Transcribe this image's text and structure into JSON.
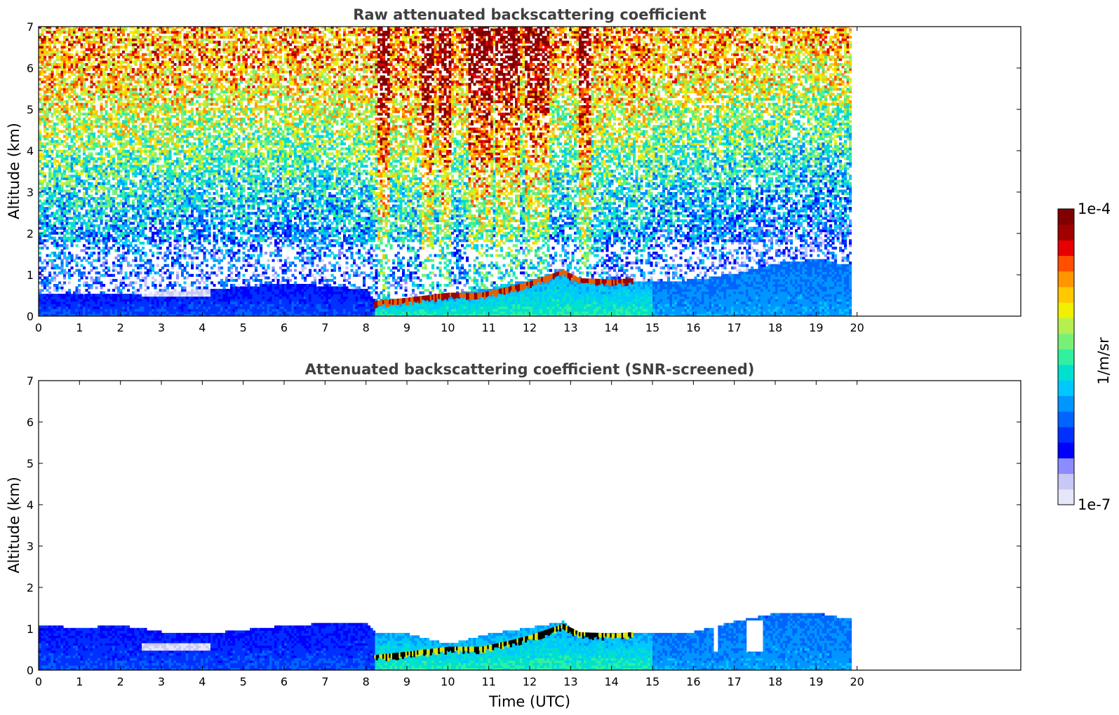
{
  "chart_data": [
    {
      "type": "heatmap",
      "title": "Raw attenuated backscattering coefficient",
      "xlabel": "",
      "ylabel": "Altitude (km)",
      "xlim": [
        0,
        24
      ],
      "ylim": [
        0,
        7
      ],
      "xticks": [
        0,
        1,
        2,
        3,
        4,
        5,
        6,
        7,
        8,
        9,
        10,
        11,
        12,
        13,
        14,
        15,
        16,
        17,
        18,
        19,
        20
      ],
      "yticks": [
        0,
        1,
        2,
        3,
        4,
        5,
        6,
        7
      ],
      "data_extent_hours": [
        0,
        19.8
      ],
      "screened": false,
      "boundary_layer_top_km": [
        [
          0,
          0.5
        ],
        [
          2,
          0.5
        ],
        [
          3,
          0.55
        ],
        [
          4,
          0.62
        ],
        [
          5,
          0.68
        ],
        [
          6,
          0.78
        ],
        [
          7,
          0.7
        ],
        [
          8,
          0.62
        ],
        [
          8.2,
          0.3
        ],
        [
          9,
          0.4
        ],
        [
          10,
          0.5
        ],
        [
          11,
          0.65
        ],
        [
          12,
          0.85
        ],
        [
          12.8,
          1.1
        ],
        [
          13,
          0.85
        ],
        [
          14,
          0.8
        ],
        [
          15,
          0.8
        ],
        [
          16,
          0.85
        ],
        [
          17,
          1.0
        ],
        [
          18,
          1.25
        ],
        [
          19,
          1.35
        ],
        [
          19.8,
          1.2
        ]
      ],
      "cloud_layer": [
        [
          8.2,
          0.3
        ],
        [
          9,
          0.38
        ],
        [
          10,
          0.5
        ],
        [
          10.8,
          0.5
        ],
        [
          11.5,
          0.65
        ],
        [
          12,
          0.78
        ],
        [
          12.8,
          1.05
        ],
        [
          13.2,
          0.85
        ],
        [
          14,
          0.82
        ],
        [
          14.5,
          0.85
        ]
      ],
      "aerosol_plumes_hours": [
        8.4,
        9.5,
        9.9,
        10.6,
        10.9,
        11.3,
        11.6,
        12.0,
        12.3,
        13.3
      ]
    },
    {
      "type": "heatmap",
      "title": "Attenuated backscattering coefficient (SNR-screened)",
      "xlabel": "Time (UTC)",
      "ylabel": "Altitude (km)",
      "xlim": [
        0,
        24
      ],
      "ylim": [
        0,
        7
      ],
      "xticks": [
        0,
        1,
        2,
        3,
        4,
        5,
        6,
        7,
        8,
        9,
        10,
        11,
        12,
        13,
        14,
        15,
        16,
        17,
        18,
        19,
        20
      ],
      "yticks": [
        0,
        1,
        2,
        3,
        4,
        5,
        6,
        7
      ],
      "data_extent_hours": [
        0,
        19.8
      ],
      "screened": true,
      "boundary_layer_top_km": [
        [
          0,
          1.05
        ],
        [
          1,
          1.0
        ],
        [
          2,
          1.05
        ],
        [
          3,
          0.9
        ],
        [
          4,
          0.85
        ],
        [
          5,
          0.95
        ],
        [
          6,
          1.05
        ],
        [
          7,
          1.1
        ],
        [
          8,
          1.1
        ],
        [
          8.2,
          0.9
        ],
        [
          9,
          0.85
        ],
        [
          10,
          0.6
        ],
        [
          11,
          0.85
        ],
        [
          12,
          1.0
        ],
        [
          12.8,
          1.15
        ],
        [
          13,
          0.9
        ],
        [
          14,
          0.85
        ],
        [
          15,
          0.85
        ],
        [
          16,
          0.9
        ],
        [
          17,
          1.15
        ],
        [
          18,
          1.35
        ],
        [
          19,
          1.35
        ],
        [
          19.8,
          1.2
        ]
      ],
      "cloud_layer": [
        [
          8.2,
          0.3
        ],
        [
          9,
          0.38
        ],
        [
          10,
          0.5
        ],
        [
          10.8,
          0.5
        ],
        [
          11.5,
          0.65
        ],
        [
          12,
          0.78
        ],
        [
          12.8,
          1.05
        ],
        [
          13.2,
          0.85
        ],
        [
          14,
          0.82
        ],
        [
          14.5,
          0.85
        ]
      ],
      "gaps_hours": [
        [
          16.5,
          16.6
        ],
        [
          17.3,
          17.7
        ]
      ]
    }
  ],
  "colorbar": {
    "min_label": "1e-7",
    "max_label": "1e-4",
    "unit_label": "1/m/sr",
    "colors": [
      "#e6e6fa",
      "#c8c8f5",
      "#8c8cff",
      "#0000ff",
      "#0030ff",
      "#0064ff",
      "#0096ff",
      "#00c8ff",
      "#00e0d0",
      "#32f0a0",
      "#78f078",
      "#b4f050",
      "#f0f000",
      "#ffc800",
      "#ff9600",
      "#ff5000",
      "#e60000",
      "#a00000",
      "#800000"
    ]
  }
}
